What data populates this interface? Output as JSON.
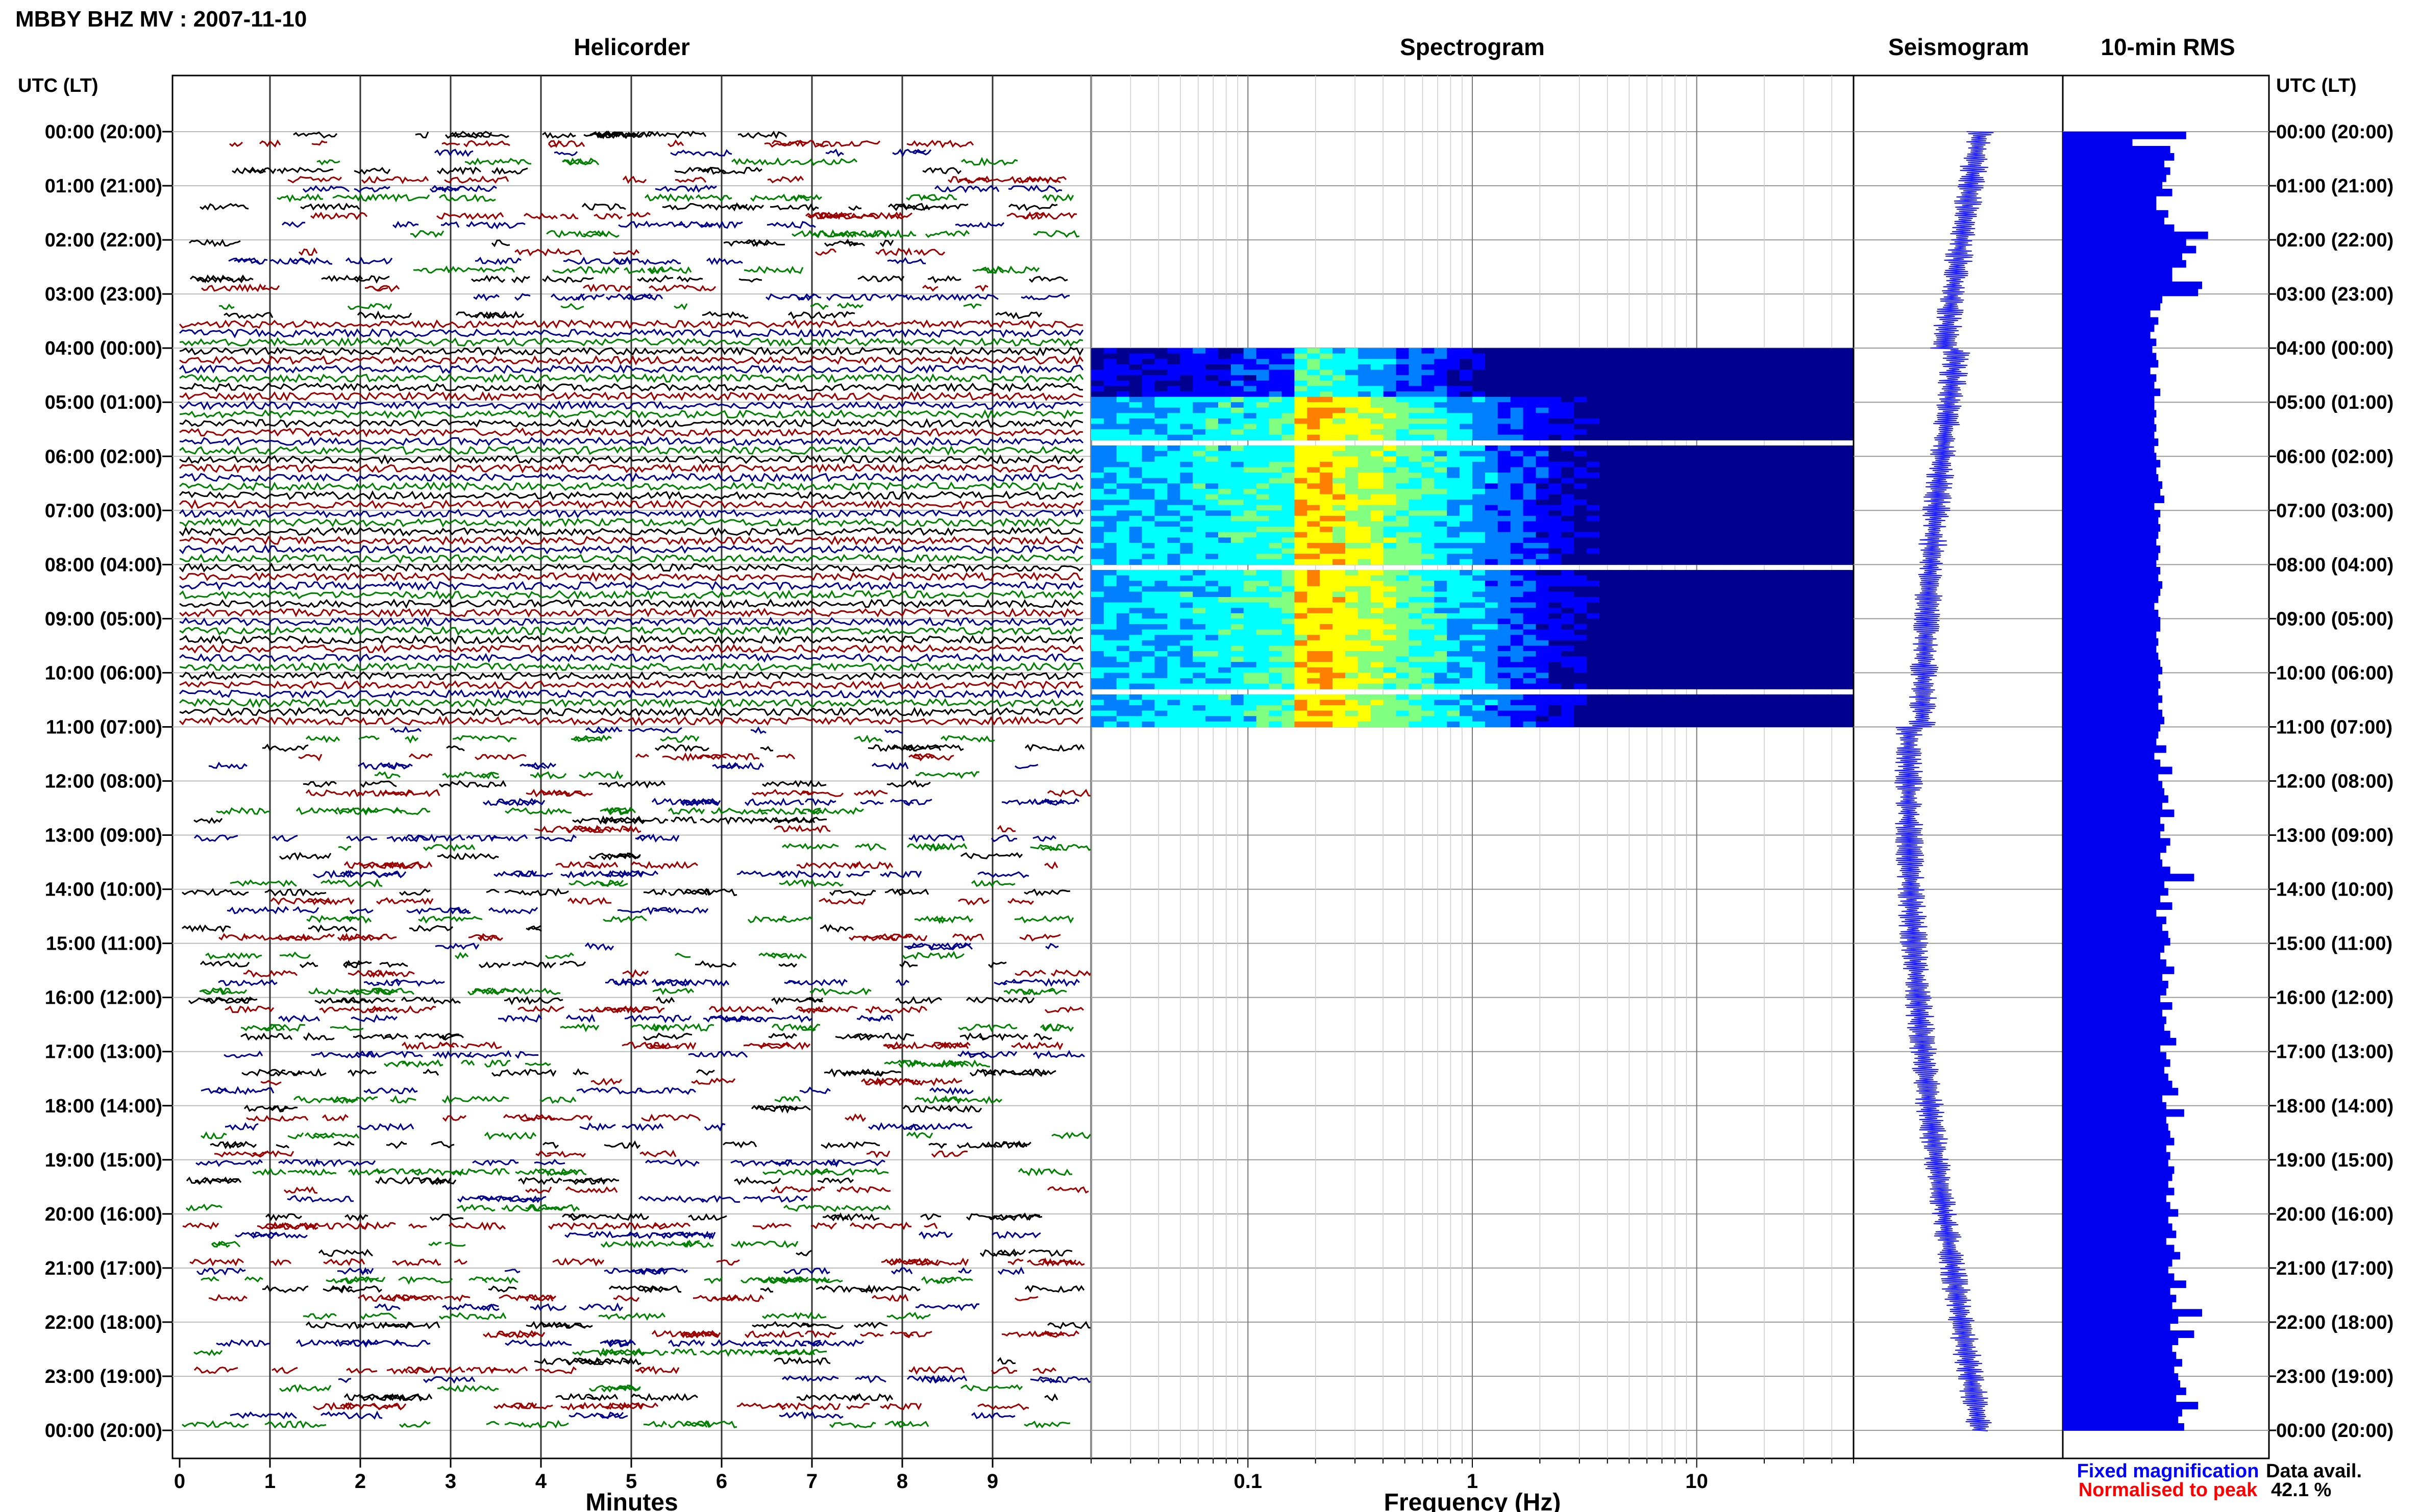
{
  "header": {
    "title": "MBBY BHZ MV : 2007-11-10"
  },
  "chart_data": {
    "type": "composite",
    "panels": {
      "helicorder": {
        "title": "Helicorder",
        "xlabel": "Minutes",
        "xlim": [
          0,
          10
        ],
        "x_ticks": [
          "0",
          "1",
          "2",
          "3",
          "4",
          "5",
          "6",
          "7",
          "8",
          "9"
        ],
        "trace_colors": [
          "#000000",
          "#9b0000",
          "#00008b",
          "#008000"
        ],
        "dense_hours_utc": [
          3.5,
          11.0
        ]
      },
      "spectrogram": {
        "title": "Spectrogram",
        "xlabel": "Frequency (Hz)",
        "x_scale": "log",
        "xlim": [
          0.02,
          50
        ],
        "x_ticks": [
          "0.1",
          "1",
          "10"
        ],
        "data_hours_utc": [
          4.0,
          11.0
        ],
        "colormap": [
          "#00008f",
          "#0000ff",
          "#0080ff",
          "#00ffff",
          "#80ff80",
          "#ffff00",
          "#ff8000",
          "#ff0000"
        ]
      },
      "seismogram": {
        "title": "Seismogram",
        "color": "#1e1eff"
      },
      "rms": {
        "title": "10-min RMS",
        "bar_color": "#0000ee",
        "units": "relative",
        "values": [
          0.62,
          0.35,
          0.54,
          0.56,
          0.51,
          0.54,
          0.52,
          0.5,
          0.55,
          0.47,
          0.47,
          0.53,
          0.51,
          0.56,
          0.73,
          0.62,
          0.67,
          0.6,
          0.62,
          0.55,
          0.55,
          0.7,
          0.68,
          0.5,
          0.49,
          0.44,
          0.48,
          0.46,
          0.44,
          0.47,
          0.45,
          0.47,
          0.48,
          0.44,
          0.47,
          0.46,
          0.49,
          0.46,
          0.46,
          0.47,
          0.46,
          0.47,
          0.46,
          0.48,
          0.46,
          0.47,
          0.49,
          0.47,
          0.48,
          0.5,
          0.49,
          0.51,
          0.46,
          0.49,
          0.48,
          0.49,
          0.48,
          0.47,
          0.49,
          0.48,
          0.47,
          0.49,
          0.48,
          0.5,
          0.49,
          0.48,
          0.46,
          0.48,
          0.49,
          0.49,
          0.47,
          0.48,
          0.47,
          0.48,
          0.49,
          0.5,
          0.48,
          0.49,
          0.48,
          0.5,
          0.48,
          0.5,
          0.51,
          0.49,
          0.48,
          0.47,
          0.52,
          0.46,
          0.49,
          0.55,
          0.48,
          0.5,
          0.51,
          0.53,
          0.5,
          0.56,
          0.49,
          0.51,
          0.49,
          0.54,
          0.52,
          0.49,
          0.5,
          0.54,
          0.66,
          0.51,
          0.53,
          0.49,
          0.55,
          0.47,
          0.52,
          0.5,
          0.53,
          0.54,
          0.51,
          0.49,
          0.52,
          0.56,
          0.5,
          0.53,
          0.52,
          0.49,
          0.55,
          0.5,
          0.52,
          0.51,
          0.54,
          0.57,
          0.49,
          0.52,
          0.54,
          0.51,
          0.53,
          0.55,
          0.58,
          0.5,
          0.52,
          0.61,
          0.52,
          0.53,
          0.54,
          0.56,
          0.52,
          0.54,
          0.53,
          0.56,
          0.55,
          0.53,
          0.56,
          0.52,
          0.54,
          0.58,
          0.53,
          0.55,
          0.57,
          0.52,
          0.56,
          0.59,
          0.55,
          0.53,
          0.56,
          0.62,
          0.54,
          0.57,
          0.55,
          0.7,
          0.58,
          0.54,
          0.66,
          0.58,
          0.55,
          0.57,
          0.6,
          0.56,
          0.58,
          0.59,
          0.62,
          0.57,
          0.68,
          0.6,
          0.58,
          0.61
        ]
      }
    },
    "y_axis": {
      "label": "UTC (LT)",
      "ticks": [
        "00:00 (20:00)",
        "01:00 (21:00)",
        "02:00 (22:00)",
        "03:00 (23:00)",
        "04:00 (00:00)",
        "05:00 (01:00)",
        "06:00 (02:00)",
        "07:00 (03:00)",
        "08:00 (04:00)",
        "09:00 (05:00)",
        "10:00 (06:00)",
        "11:00 (07:00)",
        "12:00 (08:00)",
        "13:00 (09:00)",
        "14:00 (10:00)",
        "15:00 (11:00)",
        "16:00 (12:00)",
        "17:00 (13:00)",
        "18:00 (14:00)",
        "19:00 (15:00)",
        "20:00 (16:00)",
        "21:00 (17:00)",
        "22:00 (18:00)",
        "23:00 (19:00)",
        "00:00 (20:00)"
      ]
    },
    "legend": {
      "fixed": {
        "text": "Fixed magnification",
        "color": "#0000ff"
      },
      "normalised": {
        "text": "Normalised to peak",
        "color": "#ff0000"
      },
      "placement": "bottom-right"
    },
    "availability": {
      "label": "Data avail.",
      "value": "42.1 %"
    }
  }
}
